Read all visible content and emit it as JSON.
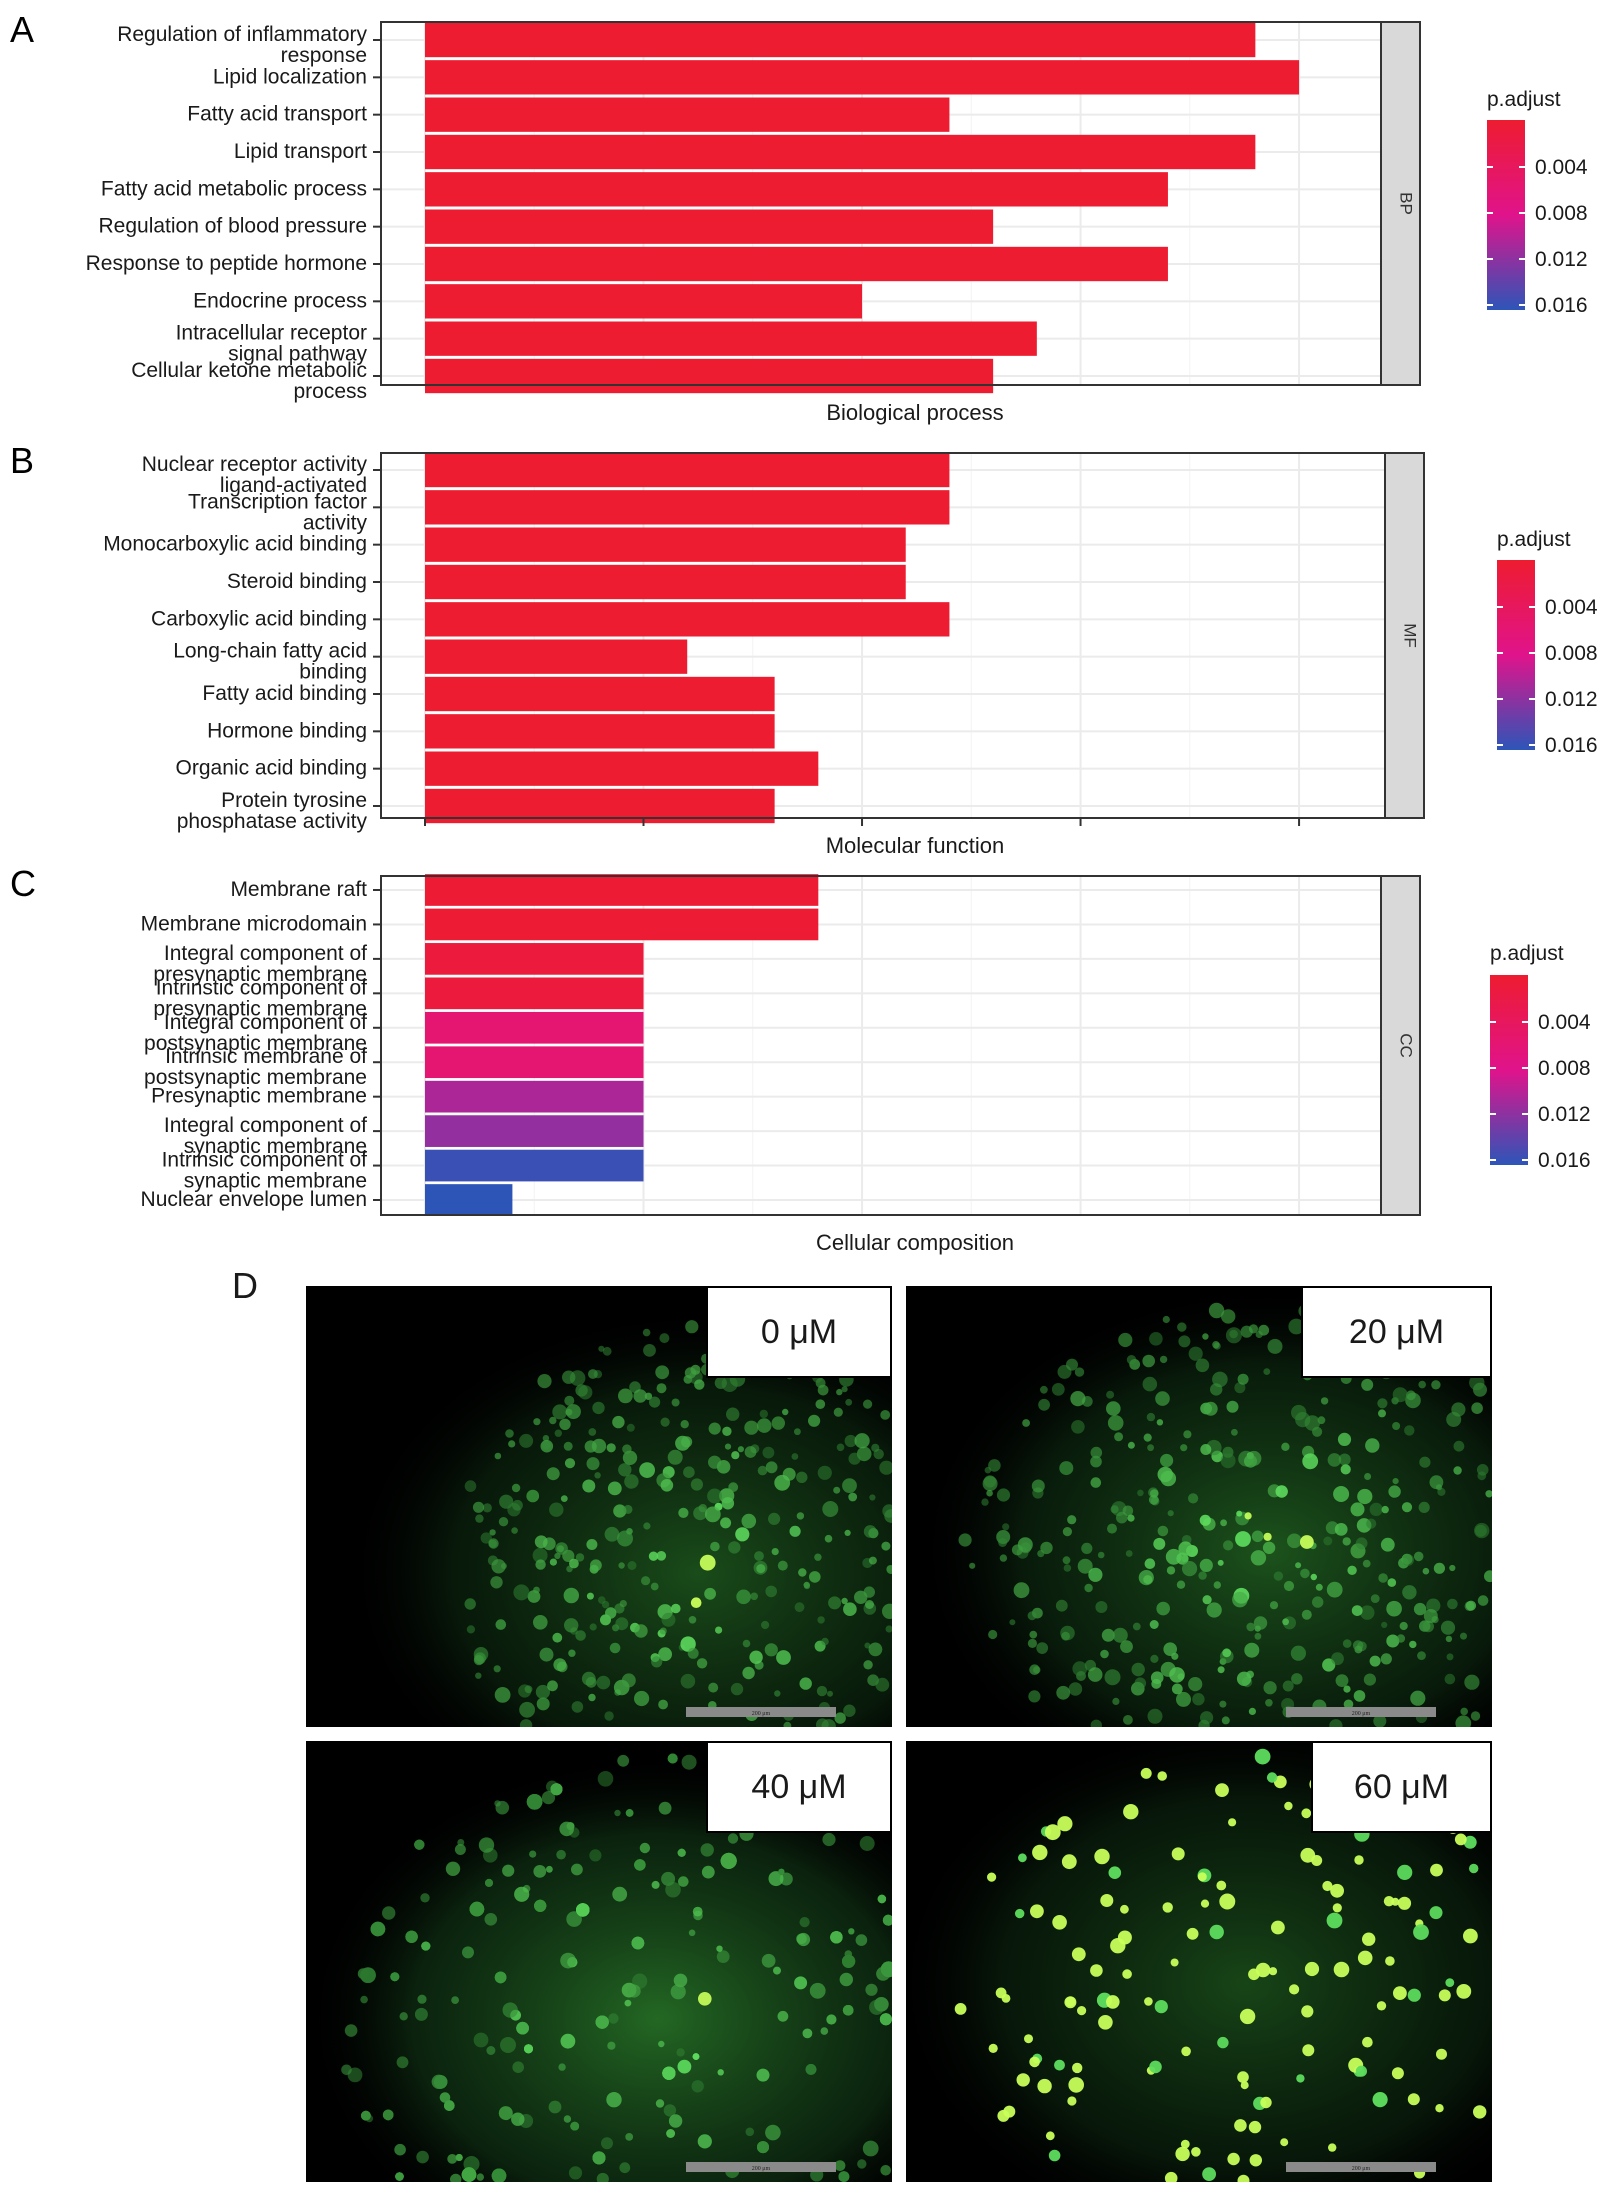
{
  "figure": {
    "panel_letters": [
      "A",
      "B",
      "C",
      "D"
    ]
  },
  "chart_data": [
    {
      "type": "bar",
      "orientation": "horizontal",
      "panel": "A",
      "xlabel": "Biological process",
      "facet_label": "BP",
      "categories": [
        "Regulation of inflammatory response",
        "Lipid localization",
        "Fatty acid transport",
        "Lipid transport",
        "Fatty acid metabolic process",
        "Regulation of blood pressure",
        "Response to peptide hormone",
        "Endocrine process",
        "Intracellular receptor signal pathway",
        "Cellular ketone metabolic process"
      ],
      "values": [
        19,
        20,
        12,
        19,
        17,
        13,
        17,
        10,
        14,
        13
      ],
      "p_adjust": [
        0.0015,
        0.0015,
        0.0015,
        0.0015,
        0.0015,
        0.0015,
        0.0015,
        0.0015,
        0.0015,
        0.0015
      ],
      "xlim": [
        0,
        21
      ],
      "grid": true,
      "legend": {
        "title": "p.adjust",
        "ticks": [
          "0.004",
          "0.008",
          "0.012",
          "0.016"
        ],
        "position": "right"
      }
    },
    {
      "type": "bar",
      "orientation": "horizontal",
      "panel": "B",
      "xlabel": "Molecular function",
      "facet_label": "MF",
      "categories": [
        "Nuclear receptor activity ligand-activated",
        "Transcription factor activity",
        "Monocarboxylic acid binding",
        "Steroid binding",
        "Carboxylic acid binding",
        "Long-chain fatty acid binding",
        "Fatty acid binding",
        "Hormone binding",
        "Organic acid binding",
        "Protein tyrosine phosphatase activity"
      ],
      "values": [
        12,
        12,
        11,
        11,
        12,
        6,
        8,
        8,
        9,
        8
      ],
      "p_adjust": [
        0.0015,
        0.0015,
        0.0015,
        0.0015,
        0.0015,
        0.0015,
        0.0015,
        0.0015,
        0.0015,
        0.0015
      ],
      "xlim": [
        0,
        21
      ],
      "grid": true,
      "legend": {
        "title": "p.adjust",
        "ticks": [
          "0.004",
          "0.008",
          "0.012",
          "0.016"
        ],
        "position": "right"
      }
    },
    {
      "type": "bar",
      "orientation": "horizontal",
      "panel": "C",
      "xlabel": "Cellular composition",
      "facet_label": "CC",
      "categories": [
        "Membrane raft",
        "Membrane microdomain",
        "Integral component of presynaptic membrane",
        "Intrinstic component of presynaptic membrane",
        "Integral component of postsynaptic membrane",
        "Intrinsic membrane of postsynaptic membrane",
        "Presynaptic membrane",
        "Integral component of synaptic membrane",
        "Intrinsic component of synaptic membrane",
        "Nuclear envelope lumen"
      ],
      "values": [
        9,
        9,
        5,
        5,
        5,
        5,
        5,
        5,
        5,
        2
      ],
      "p_adjust": [
        0.0018,
        0.0018,
        0.0025,
        0.0025,
        0.0065,
        0.0065,
        0.0105,
        0.0115,
        0.015,
        0.0155
      ],
      "xlim": [
        0,
        21
      ],
      "grid": true,
      "legend": {
        "title": "p.adjust",
        "ticks": [
          "0.004",
          "0.008",
          "0.012",
          "0.016"
        ],
        "position": "right"
      }
    }
  ],
  "micrographs": {
    "panel": "D",
    "images": [
      {
        "concentration": "0 μM",
        "description": "green fluorescence, dense small cells"
      },
      {
        "concentration": "20 μM",
        "description": "green fluorescence, dense small cells"
      },
      {
        "concentration": "40 μM",
        "description": "green fluorescence, brighter dense cells"
      },
      {
        "concentration": "60 μM",
        "description": "sparse bright round cells"
      }
    ],
    "scale_bar_text": "200 μm",
    "colors": {
      "background": "#000000",
      "cell": "#4cd64c",
      "bright_cell": "#c8ff5a",
      "scale_bar": "#8a8a8a"
    }
  },
  "colors": {
    "p_low": "#ee1c30",
    "p_mid": "#e0138b",
    "p_high": "#2d55b8",
    "panel_border": "#333333",
    "strip_fill": "#d9d9d9",
    "grid": "#ebebeb"
  }
}
